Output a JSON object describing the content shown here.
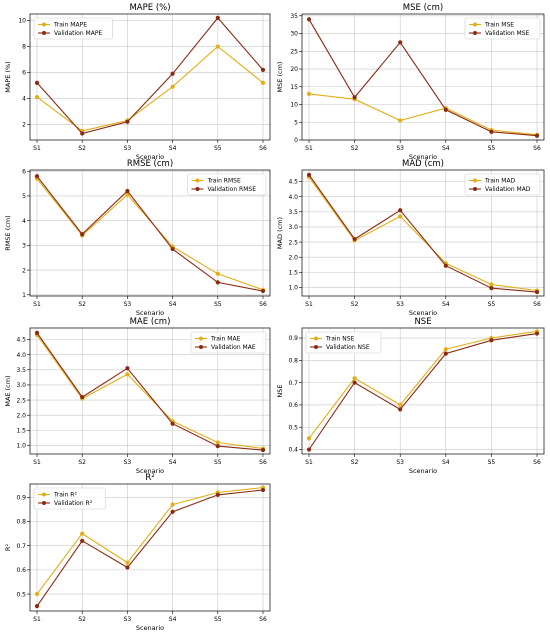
{
  "colors": {
    "train": "#E3AE16",
    "validation": "#8B2A12",
    "grid": "#c8c8c8",
    "axis": "#000000"
  },
  "chart_data": [
    {
      "type": "line",
      "title": "MAPE (%)",
      "xlabel": "Scenario",
      "ylabel": "MAPE (%)",
      "categories": [
        "S1",
        "S2",
        "S3",
        "S4",
        "S5",
        "S6"
      ],
      "ylim": [
        0.8,
        10.5
      ],
      "yticks": [
        2,
        4,
        6,
        8,
        10
      ],
      "ytick_labels": [
        "2",
        "4",
        "6",
        "8",
        "10"
      ],
      "grid": true,
      "legend": "top-left",
      "series": [
        {
          "name": "Train MAPE",
          "color": "train",
          "values": [
            4.1,
            1.5,
            2.3,
            4.9,
            8.0,
            5.2
          ]
        },
        {
          "name": "Validation MAPE",
          "color": "validation",
          "values": [
            5.2,
            1.3,
            2.2,
            5.9,
            10.2,
            6.2
          ]
        }
      ]
    },
    {
      "type": "line",
      "title": "MSE (cm)",
      "xlabel": "Scenario",
      "ylabel": "MSE (cm)",
      "categories": [
        "S1",
        "S2",
        "S3",
        "S4",
        "S5",
        "S6"
      ],
      "ylim": [
        0,
        35.5
      ],
      "yticks": [
        0,
        5,
        10,
        15,
        20,
        25,
        30,
        35
      ],
      "ytick_labels": [
        "0",
        "5",
        "10",
        "15",
        "20",
        "25",
        "30",
        "35"
      ],
      "grid": true,
      "legend": "top-right",
      "series": [
        {
          "name": "Train MSE",
          "color": "train",
          "values": [
            13.0,
            11.5,
            5.5,
            9.0,
            2.8,
            1.5
          ]
        },
        {
          "name": "Validation MSE",
          "color": "validation",
          "values": [
            34.0,
            12.0,
            27.5,
            8.5,
            2.3,
            1.2
          ]
        }
      ]
    },
    {
      "type": "line",
      "title": "RMSE (cm)",
      "xlabel": "Scenario",
      "ylabel": "RMSE (cm)",
      "categories": [
        "S1",
        "S2",
        "S3",
        "S4",
        "S5",
        "S6"
      ],
      "ylim": [
        0.95,
        6.05
      ],
      "yticks": [
        1,
        2,
        3,
        4,
        5,
        6
      ],
      "ytick_labels": [
        "1",
        "2",
        "3",
        "4",
        "5",
        "6"
      ],
      "grid": true,
      "legend": "top-right",
      "series": [
        {
          "name": "Train RMSE",
          "color": "train",
          "values": [
            5.7,
            3.4,
            5.05,
            2.95,
            1.85,
            1.2
          ]
        },
        {
          "name": "Validation RMSE",
          "color": "validation",
          "values": [
            5.8,
            3.45,
            5.2,
            2.85,
            1.5,
            1.15
          ]
        }
      ]
    },
    {
      "type": "line",
      "title": "MAD (cm)",
      "xlabel": "Scenario",
      "ylabel": "MAD (cm)",
      "categories": [
        "S1",
        "S2",
        "S3",
        "S4",
        "S5",
        "S6"
      ],
      "ylim": [
        0.72,
        4.88
      ],
      "yticks": [
        1.0,
        1.5,
        2.0,
        2.5,
        3.0,
        3.5,
        4.0,
        4.5
      ],
      "ytick_labels": [
        "1.0",
        "1.5",
        "2.0",
        "2.5",
        "3.0",
        "3.5",
        "4.0",
        "4.5"
      ],
      "grid": true,
      "legend": "top-right",
      "series": [
        {
          "name": "Train MAD",
          "color": "train",
          "values": [
            4.65,
            2.55,
            3.35,
            1.8,
            1.1,
            0.9
          ]
        },
        {
          "name": "Validation MAD",
          "color": "validation",
          "values": [
            4.72,
            2.6,
            3.55,
            1.72,
            0.98,
            0.85
          ]
        }
      ]
    },
    {
      "type": "line",
      "title": "MAE (cm)",
      "xlabel": "Scenario",
      "ylabel": "MAE (cm)",
      "categories": [
        "S1",
        "S2",
        "S3",
        "S4",
        "S5",
        "S6"
      ],
      "ylim": [
        0.72,
        4.88
      ],
      "yticks": [
        1.0,
        1.5,
        2.0,
        2.5,
        3.0,
        3.5,
        4.0,
        4.5
      ],
      "ytick_labels": [
        "1.0",
        "1.5",
        "2.0",
        "2.5",
        "3.0",
        "3.5",
        "4.0",
        "4.5"
      ],
      "grid": true,
      "legend": "top-right",
      "series": [
        {
          "name": "Train MAE",
          "color": "train",
          "values": [
            4.65,
            2.55,
            3.35,
            1.8,
            1.1,
            0.9
          ]
        },
        {
          "name": "Validation MAE",
          "color": "validation",
          "values": [
            4.72,
            2.6,
            3.55,
            1.72,
            0.98,
            0.85
          ]
        }
      ]
    },
    {
      "type": "line",
      "title": "NSE",
      "xlabel": "Scenario",
      "ylabel": "NSE",
      "categories": [
        "S1",
        "S2",
        "S3",
        "S4",
        "S5",
        "S6"
      ],
      "ylim": [
        0.38,
        0.945
      ],
      "yticks": [
        0.4,
        0.5,
        0.6,
        0.7,
        0.8,
        0.9
      ],
      "ytick_labels": [
        "0.4",
        "0.5",
        "0.6",
        "0.7",
        "0.8",
        "0.9"
      ],
      "grid": true,
      "legend": "top-left",
      "series": [
        {
          "name": "Train NSE",
          "color": "train",
          "values": [
            0.45,
            0.72,
            0.6,
            0.85,
            0.9,
            0.93
          ]
        },
        {
          "name": "Validation NSE",
          "color": "validation",
          "values": [
            0.4,
            0.7,
            0.58,
            0.83,
            0.89,
            0.92
          ]
        }
      ]
    },
    {
      "type": "line",
      "title": "R²",
      "xlabel": "Scenario",
      "ylabel": "R²",
      "categories": [
        "S1",
        "S2",
        "S3",
        "S4",
        "S5",
        "S6"
      ],
      "ylim": [
        0.43,
        0.955
      ],
      "yticks": [
        0.5,
        0.6,
        0.7,
        0.8,
        0.9
      ],
      "ytick_labels": [
        "0.5",
        "0.6",
        "0.7",
        "0.8",
        "0.9"
      ],
      "grid": true,
      "legend": "top-left",
      "series": [
        {
          "name": "Train R²",
          "color": "train",
          "values": [
            0.5,
            0.75,
            0.63,
            0.87,
            0.92,
            0.94
          ]
        },
        {
          "name": "Validation R²",
          "color": "validation",
          "values": [
            0.45,
            0.72,
            0.61,
            0.84,
            0.91,
            0.93
          ]
        }
      ]
    }
  ]
}
